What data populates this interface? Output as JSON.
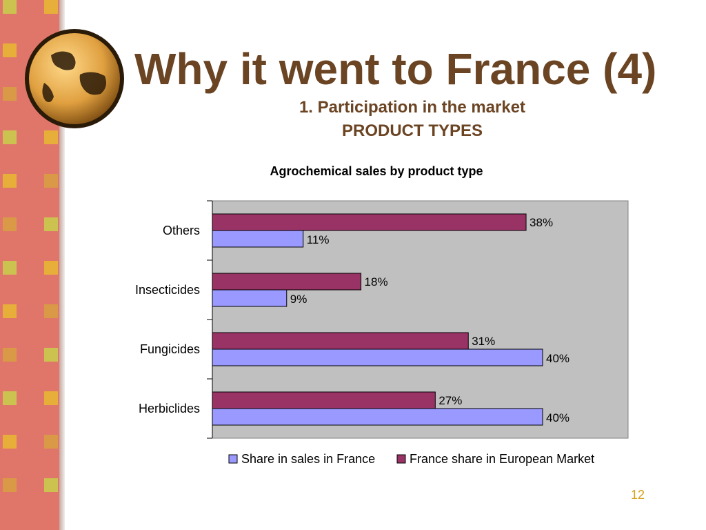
{
  "slide": {
    "title": "Why it went to France (4)",
    "subtitle": "1. Participation in the market",
    "section": "PRODUCT TYPES",
    "page_number": "12"
  },
  "colors": {
    "title": "#6b4423",
    "sidebar": "#e0766a",
    "plot_background": "#c0c0c0",
    "series_france_sales": "#9999ff",
    "series_european_share": "#993366",
    "page_number": "#d4a017"
  },
  "chart_data": {
    "type": "bar",
    "orientation": "horizontal",
    "title": "Agrochemical sales by product type",
    "categories": [
      "Herbiclides",
      "Fungicides",
      "Insecticides",
      "Others"
    ],
    "series": [
      {
        "name": "Share in sales in France",
        "values": [
          40,
          40,
          9,
          11
        ],
        "labels": [
          "40%",
          "40%",
          "9%",
          "11%"
        ],
        "color": "#9999ff"
      },
      {
        "name": "France share in European Market",
        "values": [
          27,
          31,
          18,
          38
        ],
        "labels": [
          "27%",
          "31%",
          "18%",
          "38%"
        ],
        "color": "#993366"
      }
    ],
    "xlim": [
      0,
      50
    ],
    "grid": false,
    "legend": "bottom"
  }
}
